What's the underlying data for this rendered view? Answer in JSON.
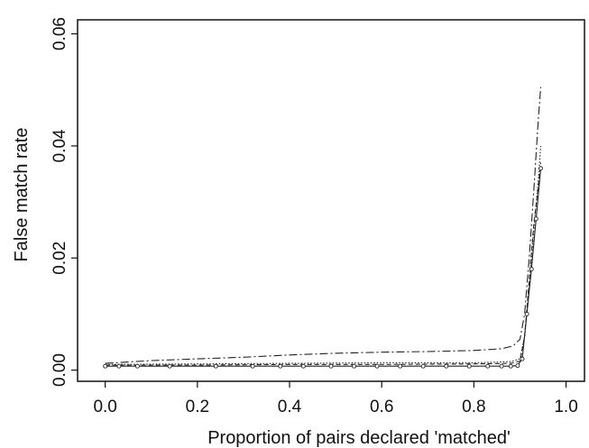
{
  "chart_data": {
    "type": "line",
    "title": "",
    "xlabel": "Proportion of pairs declared 'matched'",
    "ylabel": "False match rate",
    "xlim": [
      -0.06,
      1.04
    ],
    "ylim": [
      -0.002,
      0.0625
    ],
    "xticks": [
      0.0,
      0.2,
      0.4,
      0.6,
      0.8,
      1.0
    ],
    "xtick_labels": [
      "0.0",
      "0.2",
      "0.4",
      "0.6",
      "0.8",
      "1.0"
    ],
    "yticks": [
      0.0,
      0.02,
      0.04,
      0.06
    ],
    "ytick_labels": [
      "0.00",
      "0.02",
      "0.04",
      "0.06"
    ],
    "grid": false,
    "legend": "none",
    "series": [
      {
        "style": "dashdot",
        "x": [
          0.0,
          0.1,
          0.2,
          0.3,
          0.4,
          0.5,
          0.6,
          0.7,
          0.8,
          0.86,
          0.885,
          0.9,
          0.91,
          0.92,
          0.93,
          0.94,
          0.945
        ],
        "y": [
          0.0012,
          0.0017,
          0.002,
          0.0023,
          0.0027,
          0.003,
          0.0032,
          0.0033,
          0.0035,
          0.0038,
          0.0043,
          0.0055,
          0.01,
          0.02,
          0.032,
          0.045,
          0.0505
        ]
      },
      {
        "style": "dotted",
        "x": [
          0.0,
          0.2,
          0.4,
          0.6,
          0.8,
          0.88,
          0.9,
          0.91,
          0.92,
          0.93,
          0.94,
          0.945
        ],
        "y": [
          0.001,
          0.0011,
          0.0012,
          0.0013,
          0.0013,
          0.0015,
          0.002,
          0.006,
          0.015,
          0.025,
          0.034,
          0.04
        ]
      },
      {
        "style": "dashed",
        "x": [
          0.0,
          0.2,
          0.4,
          0.6,
          0.8,
          0.88,
          0.9,
          0.91,
          0.92,
          0.93,
          0.94,
          0.945
        ],
        "y": [
          0.0009,
          0.0009,
          0.001,
          0.001,
          0.0011,
          0.0012,
          0.0016,
          0.006,
          0.016,
          0.026,
          0.033,
          0.037
        ]
      },
      {
        "style": "solid-circles",
        "x": [
          0.0,
          0.03,
          0.07,
          0.14,
          0.24,
          0.32,
          0.38,
          0.43,
          0.49,
          0.54,
          0.59,
          0.64,
          0.69,
          0.74,
          0.79,
          0.83,
          0.86,
          0.88,
          0.895,
          0.905,
          0.915,
          0.925,
          0.935,
          0.945
        ],
        "y": [
          0.0007,
          0.0007,
          0.0007,
          0.0007,
          0.0007,
          0.0007,
          0.0007,
          0.0007,
          0.0007,
          0.0007,
          0.0007,
          0.0007,
          0.0007,
          0.0007,
          0.0007,
          0.0007,
          0.0007,
          0.0007,
          0.0008,
          0.002,
          0.01,
          0.018,
          0.027,
          0.036
        ],
        "markers": true
      }
    ]
  }
}
